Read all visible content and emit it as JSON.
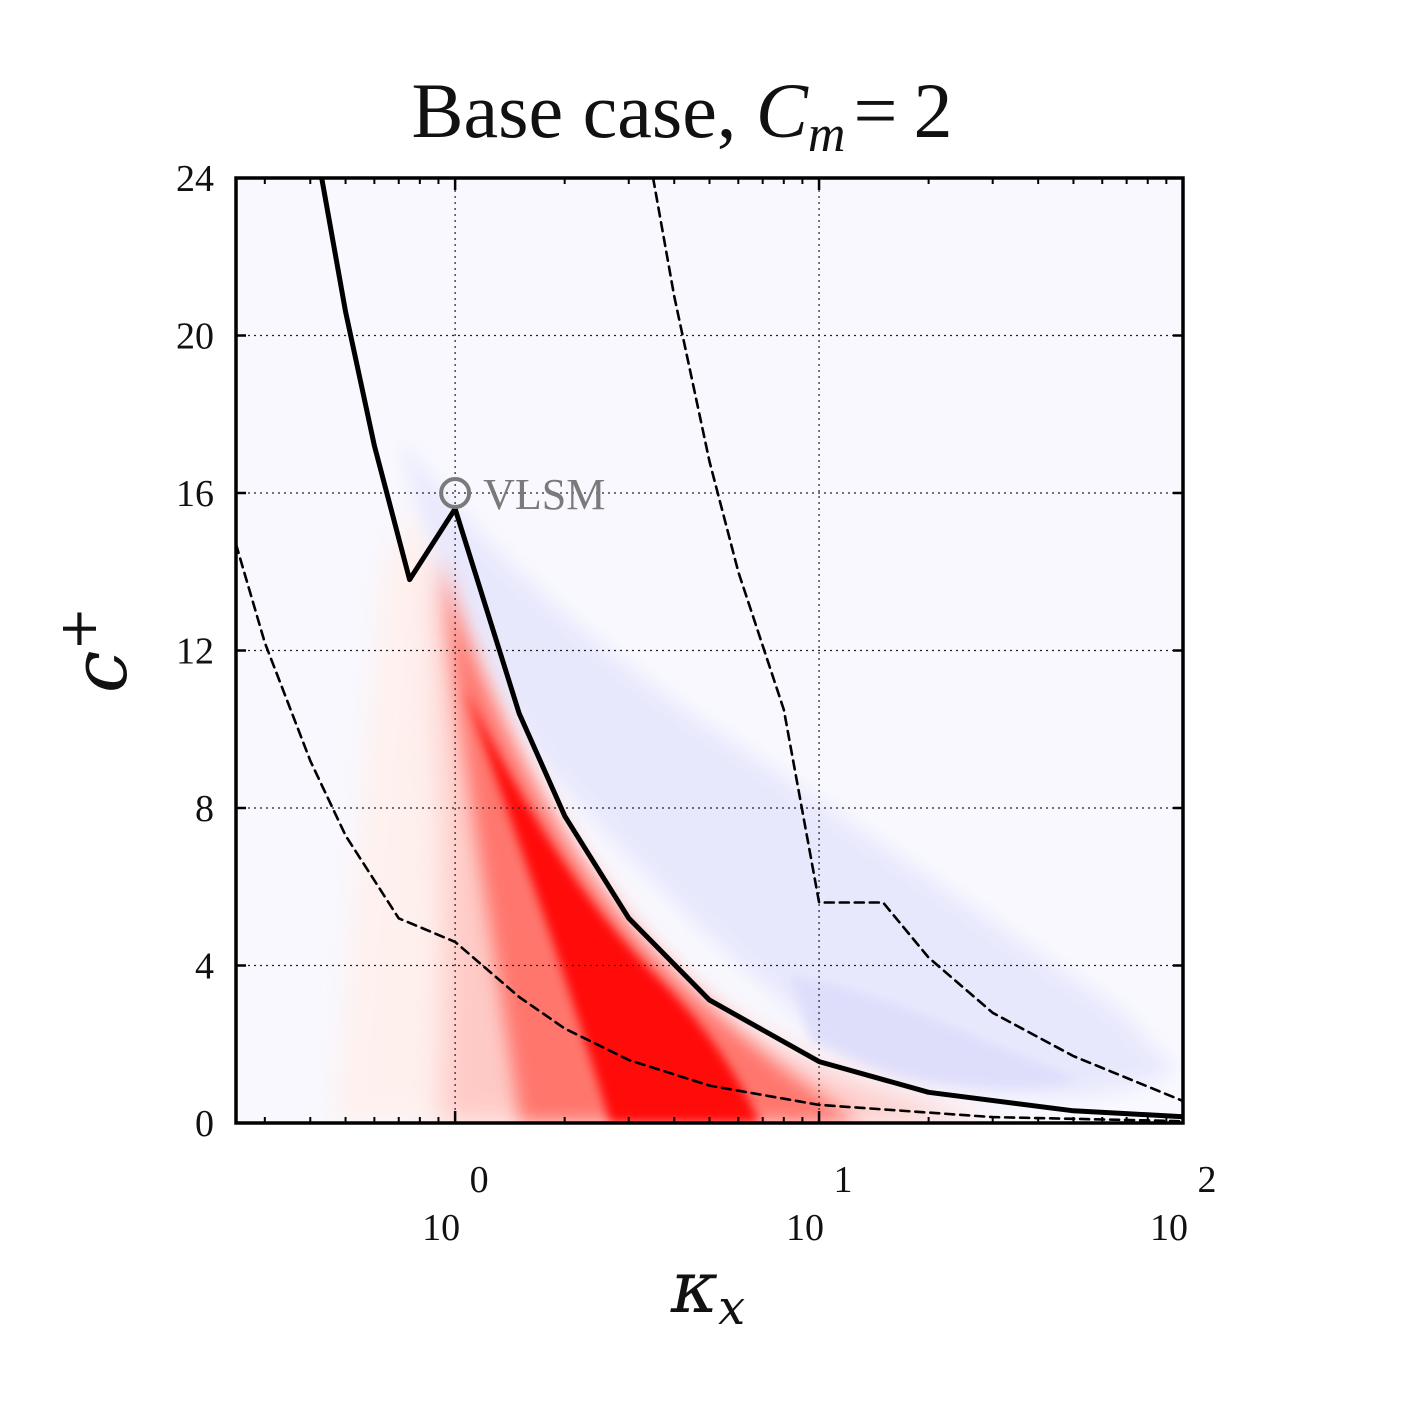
{
  "chart_data": {
    "type": "heatmap",
    "title": "Base case, C_m = 2",
    "title_parts": {
      "text": "Base case, ",
      "symbol": "C",
      "subscript": "m",
      "equals": "=",
      "value": "2"
    },
    "xlabel": {
      "symbol": "κ",
      "subscript": "x"
    },
    "ylabel": {
      "symbol": "c",
      "superscript": "+"
    },
    "x_scale": "log",
    "xlim": [
      0.25,
      100
    ],
    "ylim": [
      0,
      24
    ],
    "x_ticks": [
      {
        "value": 1,
        "base": "10",
        "exponent": "0"
      },
      {
        "value": 10,
        "base": "10",
        "exponent": "1"
      },
      {
        "value": 100,
        "base": "10",
        "exponent": "2"
      }
    ],
    "y_ticks": [
      {
        "value": 0,
        "label": "0"
      },
      {
        "value": 4,
        "label": "4"
      },
      {
        "value": 8,
        "label": "8"
      },
      {
        "value": 12,
        "label": "12"
      },
      {
        "value": 16,
        "label": "16"
      },
      {
        "value": 20,
        "label": "20"
      },
      {
        "value": 24,
        "label": "24"
      }
    ],
    "grid": true,
    "colors": {
      "positive": "#ff0000",
      "negative": "#5a5aff",
      "background": "#f8f8fe",
      "curve": "#000000",
      "annotation": "#7a7a7a"
    },
    "series": [
      {
        "style": "solid",
        "x": [
          0.43,
          0.5,
          0.6,
          0.75,
          1.0,
          1.5,
          2.0,
          3.0,
          5.0,
          10.0,
          20.0,
          50.0,
          100.0
        ],
        "y": [
          24.0,
          20.6,
          17.2,
          13.8,
          15.6,
          10.4,
          7.8,
          5.2,
          3.12,
          1.56,
          0.78,
          0.31,
          0.16
        ]
      },
      {
        "style": "dashed",
        "x": [
          0.25,
          0.3,
          0.4,
          0.5,
          0.7,
          1.0,
          1.5,
          2.0,
          3.0,
          5.0,
          10.0,
          30.0,
          100.0
        ],
        "y": [
          14.7,
          12.2,
          9.2,
          7.3,
          5.2,
          4.6,
          3.2,
          2.4,
          1.6,
          0.95,
          0.46,
          0.15,
          0.046
        ]
      },
      {
        "style": "dashed",
        "x": [
          3.5,
          4.0,
          5.0,
          6.0,
          8.0,
          10.0,
          15.0,
          20.0,
          30.0,
          50.0,
          100.0
        ],
        "y": [
          24.0,
          21.0,
          16.8,
          14.0,
          10.5,
          5.6,
          5.6,
          4.2,
          2.8,
          1.7,
          0.56
        ]
      }
    ],
    "markers": [
      {
        "x": 1.0,
        "y": 16,
        "label": "VLSM"
      }
    ]
  }
}
